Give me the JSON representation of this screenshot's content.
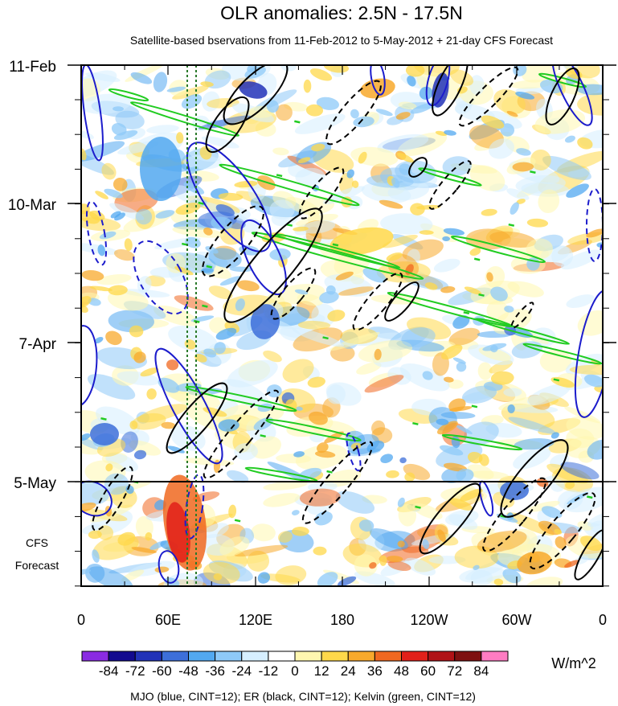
{
  "chart_data": {
    "type": "heatmap",
    "title": "OLR anomalies: 2.5N - 17.5N",
    "subtitle": "Satellite-based bservations from 11-Feb-2012 to 5-May-2012 + 21-day CFS Forecast",
    "x_ticks": [
      "0",
      "60E",
      "120E",
      "180",
      "120W",
      "60W",
      "0"
    ],
    "y_ticks": [
      "11-Feb",
      "10-Mar",
      "7-Apr",
      "5-May"
    ],
    "forecast_label_lines": [
      "CFS",
      "Forecast"
    ],
    "colorbar": {
      "labels": [
        "-84",
        "-72",
        "-60",
        "-48",
        "-36",
        "-24",
        "-12",
        "0",
        "12",
        "24",
        "36",
        "48",
        "60",
        "72",
        "84"
      ],
      "units": "W/m^2",
      "colors": [
        "#8a2be2",
        "#120a8f",
        "#2233b8",
        "#3d6fd9",
        "#52a8f0",
        "#8ec9f8",
        "#d6efff",
        "#ffffff",
        "#fff7b0",
        "#ffd84a",
        "#f8a92c",
        "#f06820",
        "#e2201a",
        "#b01216",
        "#7e1010",
        "#ff7cc2"
      ]
    },
    "footer": "MJO (blue, CINT=12); ER (black, CINT=12); Kelvin (green, CINT=12)",
    "series": [
      {
        "name": "MJO",
        "color": "#1c1ccc"
      },
      {
        "name": "ER",
        "color": "#000000"
      },
      {
        "name": "Kelvin",
        "color": "#22cc22"
      }
    ],
    "xlim_deg_east": [
      0,
      360
    ],
    "observed_end": "5-May",
    "forecast_days": 21
  }
}
